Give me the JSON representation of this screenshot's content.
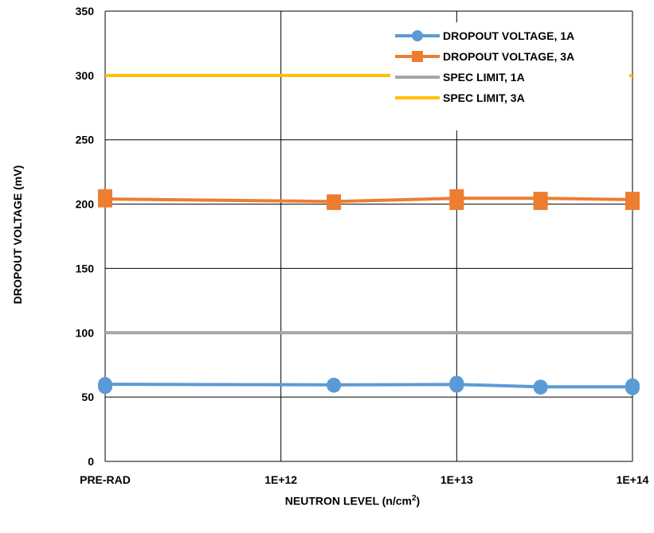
{
  "chart_data": {
    "type": "line",
    "xlabel_main": "NEUTRON LEVEL (n/cm",
    "xlabel_sup": "2",
    "xlabel_close": ")",
    "ylabel": "DROPOUT VOLTAGE (mV)",
    "ylim": [
      0,
      350
    ],
    "yticks": [
      "0",
      "50",
      "100",
      "150",
      "200",
      "250",
      "300",
      "350"
    ],
    "xticks": [
      "PRE-RAD",
      "1E+12",
      "1E+13",
      "1E+14"
    ],
    "grid": true,
    "legend_position": "top-right",
    "series": [
      {
        "name": "DROPOUT VOLTAGE, 1A",
        "color": "#5B9BD5",
        "marker": "circle",
        "points": [
          {
            "x": "PRE-RAD",
            "y": 60
          },
          {
            "x": "PRE-RAD",
            "y": 58
          },
          {
            "x": "2E+12",
            "y": 59.5
          },
          {
            "x": "2E+12",
            "y": 59
          },
          {
            "x": "1E+13",
            "y": 61
          },
          {
            "x": "1E+13",
            "y": 59
          },
          {
            "x": "3E+13",
            "y": 58
          },
          {
            "x": "3E+13",
            "y": 57.5
          },
          {
            "x": "1E+14",
            "y": 59
          },
          {
            "x": "1E+14",
            "y": 57
          }
        ],
        "line": [
          [
            "PRE-RAD",
            60
          ],
          [
            "2E+12",
            59.5
          ],
          [
            "1E+13",
            59.8
          ],
          [
            "3E+13",
            58
          ],
          [
            "1E+14",
            58
          ]
        ]
      },
      {
        "name": "DROPOUT VOLTAGE, 3A",
        "color": "#ED7D31",
        "marker": "square",
        "points": [
          {
            "x": "PRE-RAD",
            "y": 206
          },
          {
            "x": "PRE-RAD",
            "y": 203
          },
          {
            "x": "2E+12",
            "y": 202
          },
          {
            "x": "2E+12",
            "y": 201
          },
          {
            "x": "1E+13",
            "y": 206
          },
          {
            "x": "1E+13",
            "y": 201
          },
          {
            "x": "3E+13",
            "y": 204
          },
          {
            "x": "3E+13",
            "y": 201
          },
          {
            "x": "1E+14",
            "y": 204
          },
          {
            "x": "1E+14",
            "y": 201
          }
        ],
        "line": [
          [
            "PRE-RAD",
            204
          ],
          [
            "2E+12",
            202
          ],
          [
            "1E+13",
            204.5
          ],
          [
            "3E+13",
            204.5
          ],
          [
            "1E+14",
            203.5
          ]
        ]
      },
      {
        "name": "SPEC LIMIT, 1A",
        "color": "#A5A5A5",
        "marker": "none",
        "line": [
          [
            "PRE-RAD",
            100
          ],
          [
            "1E+14",
            100
          ]
        ]
      },
      {
        "name": "SPEC LIMIT, 3A",
        "color": "#FFC000",
        "marker": "none",
        "line": [
          [
            "PRE-RAD",
            300
          ],
          [
            "1E+14",
            300
          ]
        ]
      }
    ]
  }
}
